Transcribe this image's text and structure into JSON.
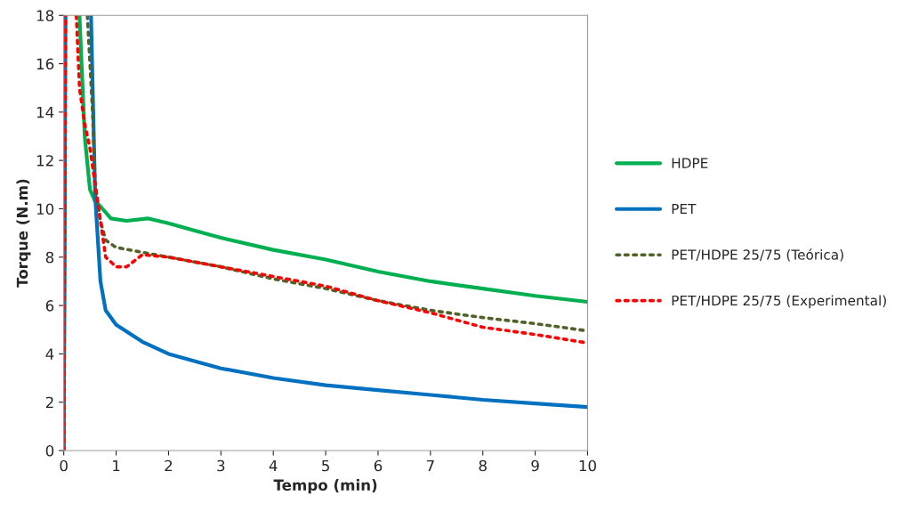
{
  "chart_data": {
    "type": "line",
    "xlabel": "Tempo (min)",
    "ylabel": "Torque (N.m)",
    "xlim": [
      0,
      10
    ],
    "xticks": [
      0,
      1,
      2,
      3,
      4,
      5,
      6,
      7,
      8,
      9,
      10
    ],
    "ylim": [
      0,
      18
    ],
    "yticks": [
      0,
      2,
      4,
      6,
      8,
      10,
      12,
      14,
      16,
      18
    ],
    "grid": false,
    "legend": "right",
    "marker": "none",
    "series": [
      {
        "name": "HDPE",
        "color": "#00b050",
        "line_style": "solid",
        "x": [
          0,
          0.03,
          0.1,
          0.3,
          0.4,
          0.5,
          0.6,
          0.7,
          0.9,
          1.2,
          1.6,
          2.0,
          2.5,
          3,
          4,
          5,
          6,
          7,
          8,
          9,
          10
        ],
        "values": [
          0,
          18,
          null,
          18,
          13,
          10.8,
          10.3,
          10.1,
          9.6,
          9.5,
          9.6,
          9.4,
          9.1,
          8.8,
          8.3,
          7.9,
          7.4,
          7.0,
          6.7,
          6.4,
          6.15
        ]
      },
      {
        "name": "PET",
        "color": "#0070c0",
        "line_style": "solid",
        "x": [
          0,
          0.03,
          0.1,
          0.52,
          0.6,
          0.7,
          0.8,
          1.0,
          1.5,
          2,
          3,
          4,
          5,
          6,
          7,
          8,
          9,
          10
        ],
        "values": [
          0,
          18,
          null,
          18,
          10.5,
          7,
          5.8,
          5.2,
          4.5,
          4.0,
          3.4,
          3.0,
          2.7,
          2.5,
          2.3,
          2.1,
          1.95,
          1.8
        ]
      },
      {
        "name": "PET/HDPE 25/75 (Teórica)",
        "color": "#4f6228",
        "line_style": "dotted",
        "x": [
          0,
          0.03,
          0.1,
          0.45,
          0.55,
          0.6,
          0.7,
          0.8,
          1.0,
          1.5,
          2,
          3,
          4,
          5,
          6,
          7,
          8,
          9,
          10
        ],
        "values": [
          0,
          18,
          null,
          18,
          14,
          11,
          9.5,
          8.7,
          8.4,
          8.2,
          8.0,
          7.6,
          7.1,
          6.7,
          6.2,
          5.8,
          5.5,
          5.25,
          4.95
        ]
      },
      {
        "name": "PET/HDPE 25/75 (Experimental)",
        "color": "#ff0000",
        "line_style": "dotted",
        "x": [
          0,
          0.03,
          0.1,
          0.24,
          0.3,
          0.4,
          0.5,
          0.6,
          0.7,
          0.8,
          1.0,
          1.2,
          1.5,
          2,
          3,
          4,
          5,
          6,
          7,
          8,
          9,
          10
        ],
        "values": [
          0,
          18,
          null,
          18,
          15,
          13.5,
          12.5,
          11,
          9.5,
          8,
          7.6,
          7.6,
          8.1,
          8.0,
          7.6,
          7.2,
          6.8,
          6.2,
          5.7,
          5.1,
          4.8,
          4.45
        ]
      }
    ]
  }
}
